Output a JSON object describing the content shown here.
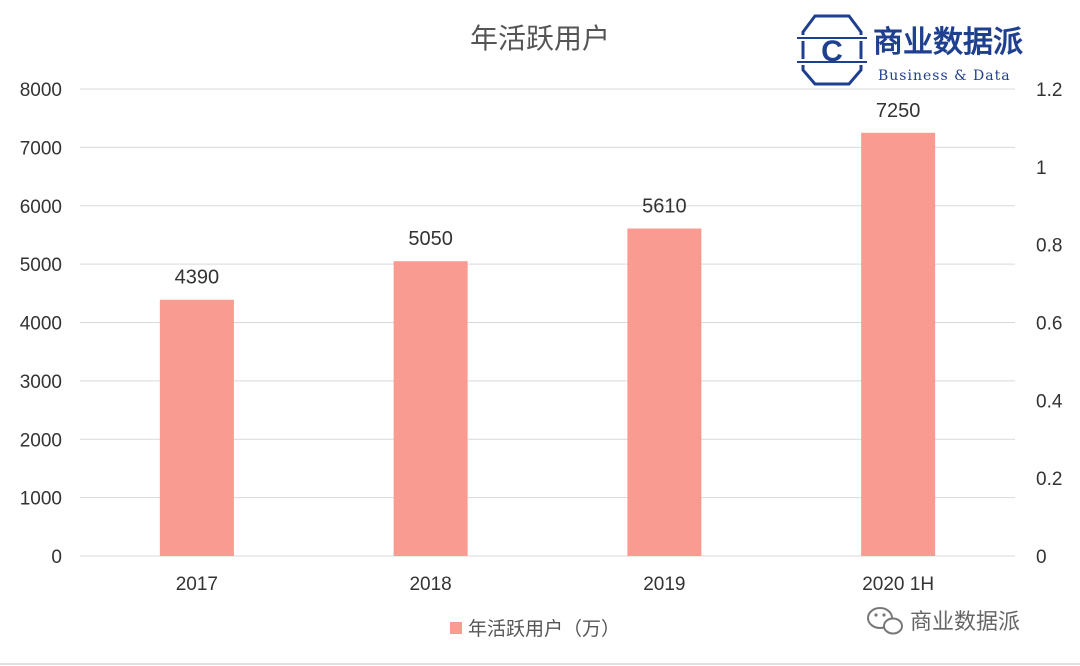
{
  "chart_data": {
    "type": "bar",
    "title": "年活跃用户",
    "categories": [
      "2017",
      "2018",
      "2019",
      "2020 1H"
    ],
    "series": [
      {
        "name": "年活跃用户（万）",
        "values": [
          4390,
          5050,
          5610,
          7250
        ]
      }
    ],
    "data_labels": [
      "4390",
      "5050",
      "5610",
      "7250"
    ],
    "ylim": [
      0,
      8000
    ],
    "y_ticks": [
      0,
      1000,
      2000,
      3000,
      4000,
      5000,
      6000,
      7000,
      8000
    ],
    "y2lim": [
      0,
      1.2
    ],
    "y2_ticks": [
      "0",
      "0.2",
      "0.4",
      "0.6",
      "0.8",
      "1",
      "1.2"
    ],
    "grid": true,
    "legend_position": "bottom",
    "colors": {
      "bar": "#f99b91",
      "grid": "#d9d9d9",
      "brand": "#1f3f8f"
    }
  },
  "brand": {
    "logo_letter": "C",
    "name_cn": "商业数据派",
    "name_en": "Business & Data"
  },
  "watermark": {
    "icon": "wechat-icon",
    "text": "商业数据派"
  }
}
